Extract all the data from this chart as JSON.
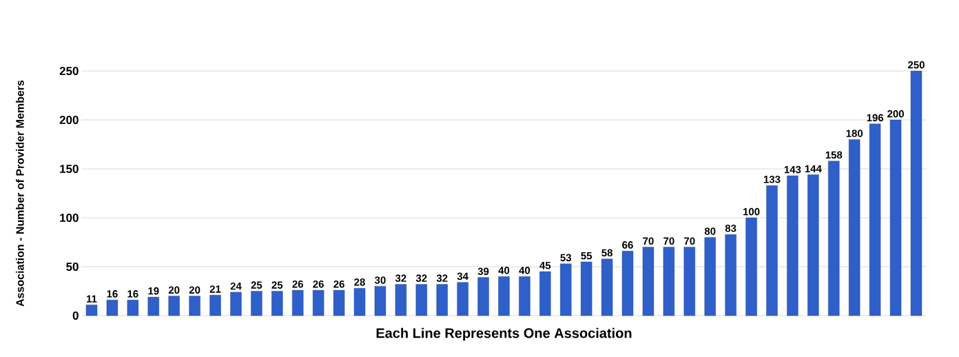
{
  "chart_data": {
    "type": "bar",
    "xlabel": "Each Line Represents One Association",
    "ylabel": "Association - Number of Provider Members",
    "categories": [
      null,
      null,
      null,
      null,
      null,
      null,
      null,
      null,
      null,
      null,
      null,
      null,
      null,
      null,
      null,
      null,
      null,
      null,
      null,
      null,
      null,
      null,
      null,
      null,
      null,
      null,
      null,
      null,
      null,
      null,
      null,
      null,
      null,
      null,
      null,
      null,
      null,
      null,
      null,
      null,
      null
    ],
    "values": [
      11,
      16,
      16,
      19,
      20,
      20,
      21,
      24,
      25,
      25,
      26,
      26,
      26,
      28,
      30,
      32,
      32,
      32,
      34,
      39,
      40,
      40,
      45,
      53,
      55,
      58,
      66,
      70,
      70,
      70,
      80,
      83,
      100,
      133,
      143,
      144,
      158,
      180,
      196,
      200,
      250
    ],
    "color": "#2f5fc8",
    "ylim": [
      0,
      250
    ],
    "yticks": [
      0,
      50,
      100,
      150,
      200,
      250
    ],
    "grid": "y",
    "data_labels": true
  }
}
